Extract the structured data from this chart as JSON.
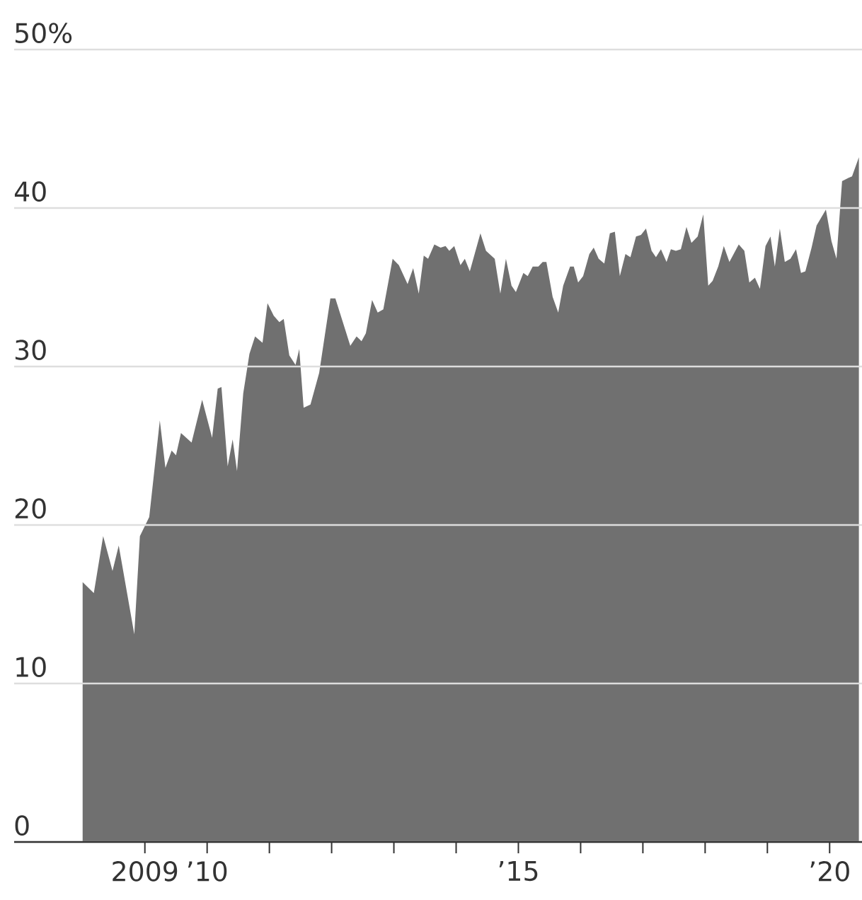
{
  "chart_data": {
    "type": "area",
    "color": "#707070",
    "grid": "y",
    "x": [
      2008.0,
      2008.18,
      2008.33,
      2008.48,
      2008.58,
      2008.83,
      2008.92,
      2009.07,
      2009.24,
      2009.33,
      2009.43,
      2009.5,
      2009.58,
      2009.75,
      2009.92,
      2010.08,
      2010.17,
      2010.23,
      2010.33,
      2010.41,
      2010.48,
      2010.58,
      2010.68,
      2010.77,
      2010.89,
      2010.97,
      2011.07,
      2011.16,
      2011.23,
      2011.32,
      2011.42,
      2011.48,
      2011.55,
      2011.66,
      2011.8,
      2011.98,
      2012.06,
      2012.3,
      2012.4,
      2012.48,
      2012.55,
      2012.65,
      2012.74,
      2012.83,
      2012.98,
      2013.08,
      2013.22,
      2013.31,
      2013.4,
      2013.48,
      2013.55,
      2013.65,
      2013.75,
      2013.83,
      2013.89,
      2013.97,
      2014.07,
      2014.14,
      2014.22,
      2014.39,
      2014.48,
      2014.62,
      2014.71,
      2014.8,
      2014.89,
      2014.96,
      2015.08,
      2015.15,
      2015.23,
      2015.32,
      2015.39,
      2015.45,
      2015.55,
      2015.64,
      2015.72,
      2015.83,
      2015.89,
      2015.96,
      2016.04,
      2016.14,
      2016.21,
      2016.29,
      2016.38,
      2016.47,
      2016.55,
      2016.63,
      2016.72,
      2016.8,
      2016.89,
      2016.97,
      2017.05,
      2017.14,
      2017.21,
      2017.29,
      2017.38,
      2017.45,
      2017.53,
      2017.61,
      2017.7,
      2017.78,
      2017.88,
      2017.97,
      2018.05,
      2018.12,
      2018.21,
      2018.3,
      2018.39,
      2018.54,
      2018.63,
      2018.71,
      2018.8,
      2018.88,
      2018.97,
      2019.05,
      2019.12,
      2019.2,
      2019.28,
      2019.37,
      2019.46,
      2019.54,
      2019.61,
      2019.71,
      2019.79,
      2019.94,
      2020.03,
      2020.11,
      2020.2,
      2020.3,
      2020.36,
      2020.47
    ],
    "values": [
      16.4,
      15.7,
      19.3,
      17.1,
      18.7,
      13.1,
      19.3,
      20.5,
      26.6,
      23.6,
      24.7,
      24.4,
      25.8,
      25.2,
      27.9,
      25.5,
      28.6,
      28.7,
      23.7,
      25.4,
      23.4,
      28.3,
      30.8,
      31.9,
      31.5,
      34.0,
      33.2,
      32.8,
      33.0,
      30.7,
      30.1,
      31.1,
      27.4,
      27.6,
      29.6,
      34.3,
      34.3,
      31.3,
      31.9,
      31.6,
      32.1,
      34.2,
      33.4,
      33.6,
      36.8,
      36.4,
      35.2,
      36.2,
      34.6,
      37.0,
      36.8,
      37.7,
      37.5,
      37.6,
      37.3,
      37.6,
      36.4,
      36.8,
      36.0,
      38.4,
      37.3,
      36.8,
      34.6,
      36.8,
      35.1,
      34.7,
      35.9,
      35.7,
      36.3,
      36.3,
      36.6,
      36.6,
      34.4,
      33.4,
      35.1,
      36.3,
      36.3,
      35.3,
      35.7,
      37.1,
      37.5,
      36.8,
      36.5,
      38.4,
      38.5,
      35.7,
      37.1,
      36.9,
      38.2,
      38.3,
      38.7,
      37.3,
      36.9,
      37.4,
      36.6,
      37.4,
      37.3,
      37.4,
      38.8,
      37.8,
      38.2,
      39.6,
      35.1,
      35.4,
      36.3,
      37.6,
      36.6,
      37.7,
      37.3,
      35.3,
      35.6,
      34.9,
      37.6,
      38.2,
      36.3,
      38.7,
      36.6,
      36.8,
      37.4,
      35.9,
      36.0,
      37.5,
      38.9,
      39.9,
      37.9,
      36.8,
      41.7,
      41.9,
      42.0,
      43.2
    ],
    "xlim": [
      2006.9,
      2020.52
    ],
    "xticks": [
      {
        "value": 2009,
        "label": "2009"
      },
      {
        "value": 2010,
        "label": "’10"
      },
      {
        "value": 2011,
        "label": null
      },
      {
        "value": 2012,
        "label": null
      },
      {
        "value": 2013,
        "label": null
      },
      {
        "value": 2014,
        "label": null
      },
      {
        "value": 2015,
        "label": "’15"
      },
      {
        "value": 2016,
        "label": null
      },
      {
        "value": 2017,
        "label": null
      },
      {
        "value": 2018,
        "label": null
      },
      {
        "value": 2019,
        "label": null
      },
      {
        "value": 2020,
        "label": "’20"
      }
    ],
    "ylim": [
      0,
      50
    ],
    "yticks": [
      0,
      10,
      20,
      30,
      40,
      {
        "value": 50,
        "label": "50%"
      }
    ]
  }
}
